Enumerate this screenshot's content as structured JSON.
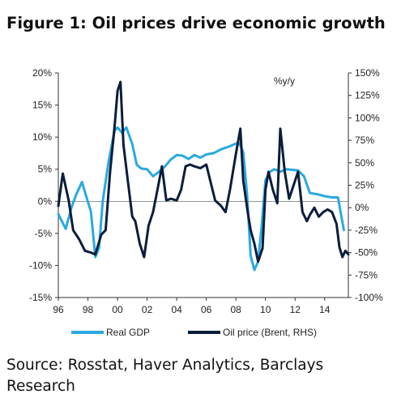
{
  "title": "Figure 1: Oil prices drive economic growth",
  "source": "Source: Rosstat, Haver Analytics, Barclays Research",
  "chart_data": {
    "type": "line",
    "annotation": "%y/y",
    "x_ticks": [
      "96",
      "98",
      "00",
      "02",
      "04",
      "06",
      "08",
      "10",
      "12",
      "14"
    ],
    "xlim": [
      1996,
      2015.6
    ],
    "y_left": {
      "ticks": [
        "20%",
        "15%",
        "10%",
        "5%",
        "0%",
        "-5%",
        "-10%",
        "-15%"
      ],
      "ylim": [
        -15,
        20
      ]
    },
    "y_right": {
      "ticks": [
        "150%",
        "125%",
        "100%",
        "75%",
        "50%",
        "25%",
        "0%",
        "-25%",
        "-50%",
        "-75%",
        "-100%"
      ],
      "ylim": [
        -100,
        150
      ]
    },
    "colors": {
      "gdp": "#2aa9e0",
      "oil": "#0b1d3c"
    },
    "series": [
      {
        "name": "Real GDP",
        "axis": "left",
        "x": [
          1996.0,
          1996.5,
          1996.9,
          1997.2,
          1997.6,
          1998.0,
          1998.2,
          1998.5,
          1998.75,
          1999.0,
          1999.4,
          1999.8,
          2000.0,
          2000.3,
          2000.6,
          2001.0,
          2001.3,
          2001.6,
          2002.0,
          2002.4,
          2002.8,
          2003.2,
          2003.6,
          2004.0,
          2004.4,
          2004.8,
          2005.2,
          2005.6,
          2006.0,
          2006.5,
          2007.0,
          2007.5,
          2008.0,
          2008.25,
          2008.5,
          2008.75,
          2009.0,
          2009.25,
          2009.5,
          2009.75,
          2010.0,
          2010.3,
          2010.6,
          2011.0,
          2011.4,
          2011.8,
          2012.2,
          2012.6,
          2013.0,
          2013.5,
          2014.0,
          2014.5,
          2014.9,
          2015.1,
          2015.3
        ],
        "values": [
          -2.0,
          -4.3,
          -0.9,
          1.0,
          3.0,
          -0.1,
          -1.6,
          -8.7,
          -7.3,
          0.0,
          6.2,
          11.0,
          11.5,
          10.7,
          11.5,
          8.9,
          5.7,
          5.1,
          5.0,
          3.9,
          4.6,
          5.4,
          6.5,
          7.2,
          7.1,
          6.6,
          7.2,
          6.8,
          7.3,
          7.5,
          8.1,
          8.5,
          9.0,
          9.0,
          7.6,
          1.2,
          -8.5,
          -10.7,
          -9.4,
          -3.7,
          3.3,
          4.6,
          5.0,
          4.6,
          5.0,
          4.9,
          4.8,
          3.9,
          1.3,
          1.1,
          0.8,
          0.6,
          0.6,
          -2.0,
          -4.5
        ]
      },
      {
        "name": "Oil price (Brent, RHS)",
        "axis": "right",
        "x": [
          1996.0,
          1996.3,
          1996.7,
          1997.0,
          1997.4,
          1997.8,
          1998.2,
          1998.5,
          1998.9,
          1999.2,
          1999.5,
          1999.8,
          2000.0,
          2000.2,
          2000.4,
          2000.7,
          2001.0,
          2001.2,
          2001.5,
          2001.8,
          2002.1,
          2002.4,
          2002.7,
          2003.0,
          2003.3,
          2003.6,
          2004.0,
          2004.3,
          2004.6,
          2004.9,
          2005.2,
          2005.6,
          2006.0,
          2006.3,
          2006.6,
          2007.0,
          2007.3,
          2007.6,
          2008.0,
          2008.3,
          2008.5,
          2008.8,
          2009.0,
          2009.25,
          2009.5,
          2009.8,
          2010.0,
          2010.2,
          2010.5,
          2010.8,
          2011.0,
          2011.3,
          2011.6,
          2011.9,
          2012.2,
          2012.5,
          2012.8,
          2013.0,
          2013.3,
          2013.6,
          2013.9,
          2014.2,
          2014.5,
          2014.8,
          2015.0,
          2015.2,
          2015.4,
          2015.6
        ],
        "values": [
          2,
          38,
          8,
          -25,
          -35,
          -48,
          -50,
          -52,
          -30,
          -25,
          40,
          90,
          130,
          140,
          70,
          30,
          -10,
          -15,
          -40,
          -55,
          -20,
          -5,
          20,
          46,
          8,
          10,
          8,
          20,
          46,
          48,
          46,
          44,
          48,
          28,
          8,
          2,
          -5,
          20,
          60,
          88,
          30,
          -5,
          -25,
          -40,
          -60,
          -45,
          20,
          40,
          20,
          5,
          88,
          40,
          10,
          25,
          40,
          -5,
          -15,
          -8,
          0,
          -10,
          -5,
          -2,
          -5,
          -18,
          -44,
          -55,
          -48,
          -52
        ]
      }
    ]
  }
}
